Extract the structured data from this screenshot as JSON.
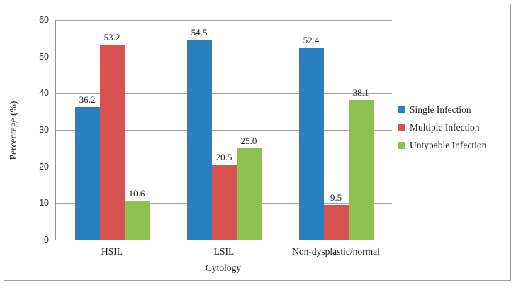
{
  "chart_data": {
    "type": "bar",
    "categories": [
      "HSIL",
      "LSIL",
      "Non-dysplastic/normal"
    ],
    "series": [
      {
        "name": "Single Infection",
        "color": "#2a7fbe",
        "values": [
          36.2,
          54.5,
          52.4
        ]
      },
      {
        "name": "Multiple Infection",
        "color": "#d85250",
        "values": [
          53.2,
          20.5,
          9.5
        ]
      },
      {
        "name": "Untypable Infection",
        "color": "#8dc051",
        "values": [
          10.6,
          25.0,
          38.1
        ]
      }
    ],
    "title": "",
    "xlabel": "Cytology",
    "ylabel": "Percentage (%)",
    "ylim": [
      0,
      60
    ],
    "yticks": [
      0,
      10,
      20,
      30,
      40,
      50,
      60
    ],
    "value_label_decimals": 1,
    "grid": true,
    "legend_position": "right"
  },
  "colors": {
    "gridline": "#a6a6a6",
    "axis_line": "#8f8f8f",
    "figure_border": "#9c9c9c",
    "label_text": "#1a1a1a"
  }
}
